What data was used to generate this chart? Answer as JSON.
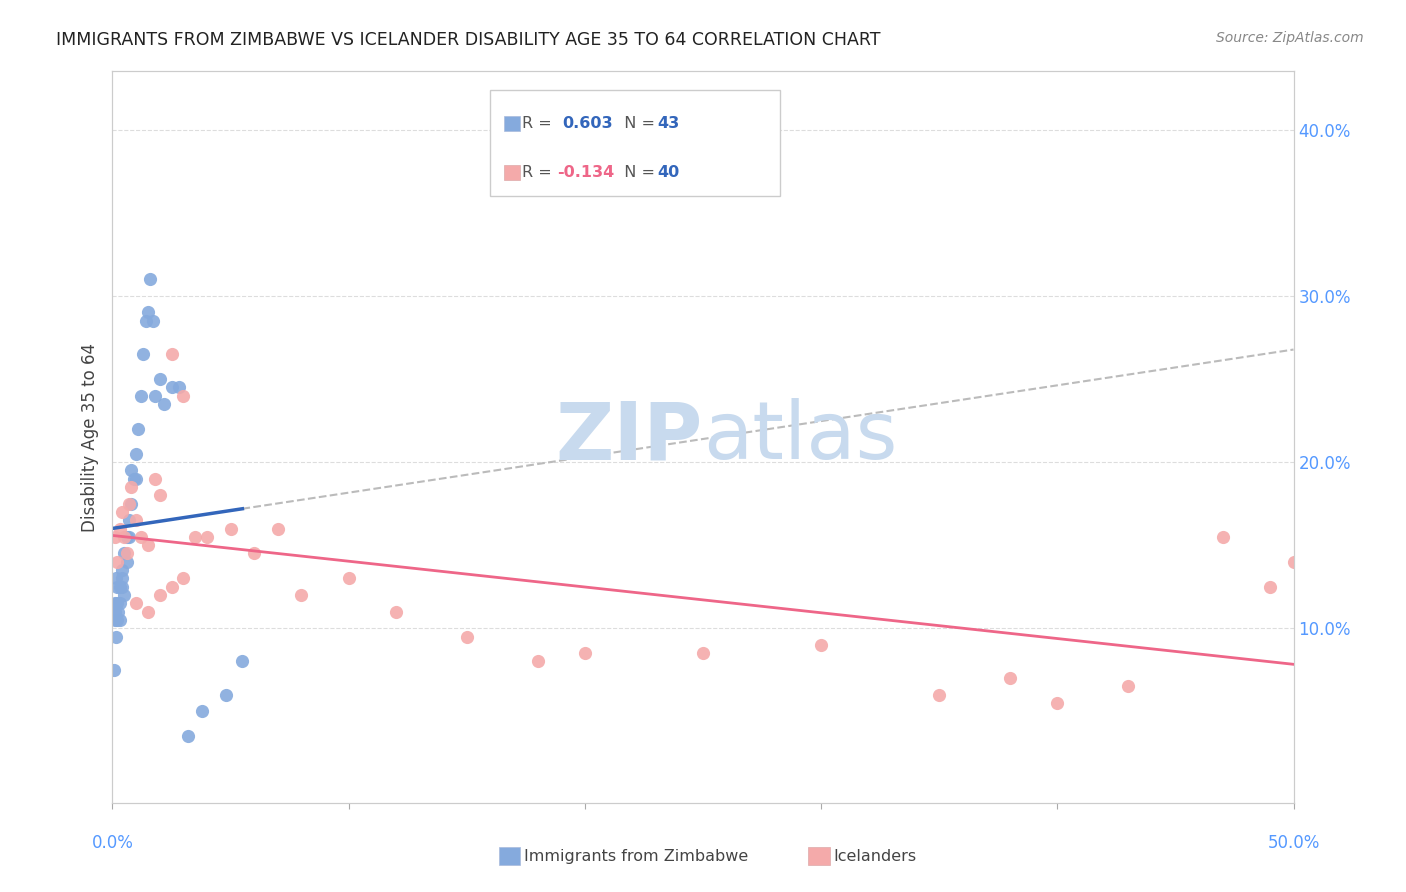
{
  "title": "IMMIGRANTS FROM ZIMBABWE VS ICELANDER DISABILITY AGE 35 TO 64 CORRELATION CHART",
  "source": "Source: ZipAtlas.com",
  "ylabel": "Disability Age 35 to 64",
  "right_yticks": [
    "10.0%",
    "20.0%",
    "30.0%",
    "40.0%"
  ],
  "right_ytick_vals": [
    0.1,
    0.2,
    0.3,
    0.4
  ],
  "xlim": [
    0.0,
    0.5
  ],
  "ylim": [
    -0.005,
    0.435
  ],
  "watermark": "ZIPatlas",
  "blue_color": "#85AADD",
  "pink_color": "#F4AAAA",
  "blue_line_color": "#3366BB",
  "pink_line_color": "#EE6688",
  "dashed_line_color": "#BBBBBB",
  "zimbabwe_x": [
    0.0005,
    0.001,
    0.001,
    0.001,
    0.0015,
    0.0015,
    0.002,
    0.002,
    0.002,
    0.0025,
    0.003,
    0.003,
    0.003,
    0.004,
    0.004,
    0.004,
    0.005,
    0.005,
    0.006,
    0.006,
    0.007,
    0.007,
    0.008,
    0.008,
    0.009,
    0.01,
    0.01,
    0.011,
    0.012,
    0.013,
    0.014,
    0.015,
    0.016,
    0.017,
    0.018,
    0.02,
    0.022,
    0.025,
    0.028,
    0.032,
    0.038,
    0.048,
    0.055
  ],
  "zimbabwe_y": [
    0.075,
    0.105,
    0.11,
    0.115,
    0.095,
    0.13,
    0.105,
    0.115,
    0.125,
    0.11,
    0.105,
    0.115,
    0.125,
    0.13,
    0.125,
    0.135,
    0.12,
    0.145,
    0.14,
    0.155,
    0.155,
    0.165,
    0.175,
    0.195,
    0.19,
    0.19,
    0.205,
    0.22,
    0.24,
    0.265,
    0.285,
    0.29,
    0.31,
    0.285,
    0.24,
    0.25,
    0.235,
    0.245,
    0.245,
    0.035,
    0.05,
    0.06,
    0.08
  ],
  "iceland_x": [
    0.001,
    0.002,
    0.003,
    0.004,
    0.005,
    0.006,
    0.007,
    0.008,
    0.01,
    0.012,
    0.015,
    0.018,
    0.02,
    0.025,
    0.03,
    0.035,
    0.04,
    0.05,
    0.06,
    0.07,
    0.08,
    0.1,
    0.12,
    0.15,
    0.18,
    0.2,
    0.25,
    0.3,
    0.35,
    0.38,
    0.4,
    0.43,
    0.47,
    0.49,
    0.5,
    0.01,
    0.015,
    0.02,
    0.025,
    0.03
  ],
  "iceland_y": [
    0.155,
    0.14,
    0.16,
    0.17,
    0.155,
    0.145,
    0.175,
    0.185,
    0.165,
    0.155,
    0.15,
    0.19,
    0.18,
    0.265,
    0.24,
    0.155,
    0.155,
    0.16,
    0.145,
    0.16,
    0.12,
    0.13,
    0.11,
    0.095,
    0.08,
    0.085,
    0.085,
    0.09,
    0.06,
    0.07,
    0.055,
    0.065,
    0.155,
    0.125,
    0.14,
    0.115,
    0.11,
    0.12,
    0.125,
    0.13
  ]
}
